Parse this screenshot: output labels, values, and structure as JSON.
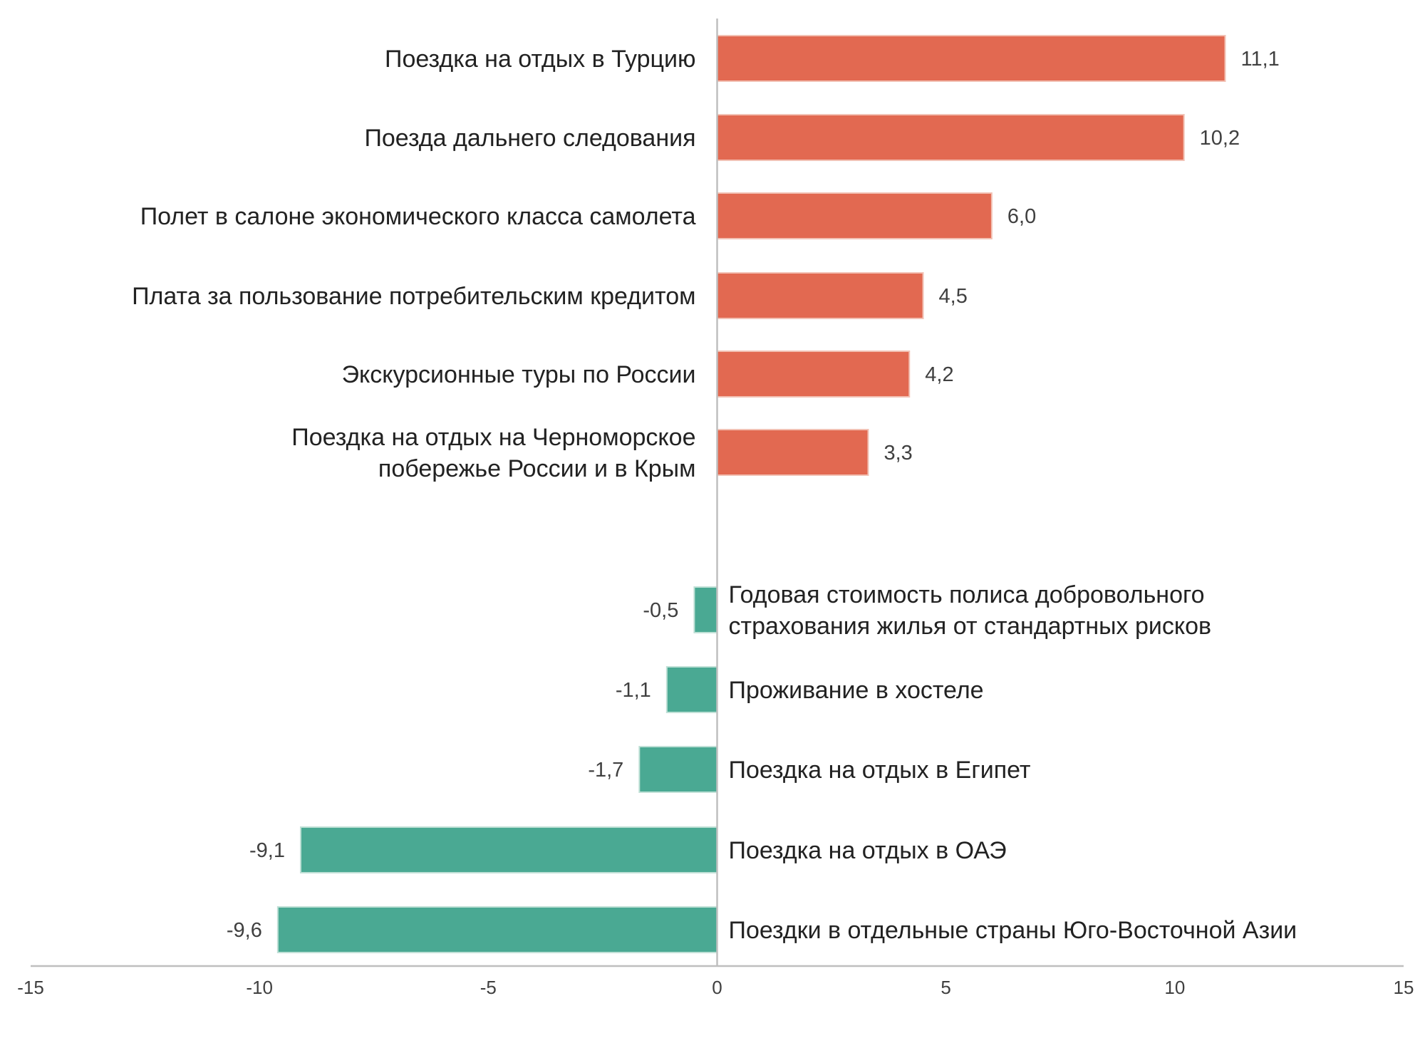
{
  "chart_data": {
    "type": "bar",
    "orientation": "horizontal",
    "title": "",
    "xlabel": "",
    "ylabel": "",
    "xlim": [
      -15,
      15
    ],
    "xticks": [
      -15,
      -10,
      -5,
      0,
      5,
      10,
      15
    ],
    "grid": false,
    "legend": "none",
    "colors": {
      "positive": "#e26951",
      "negative": "#4aa993",
      "axis": "#bfbfbf"
    },
    "bars": [
      {
        "label": [
          "Поездка на отдых в Турцию"
        ],
        "value": 11.1,
        "value_label": "11,1"
      },
      {
        "label": [
          "Поезда дальнего следования"
        ],
        "value": 10.2,
        "value_label": "10,2"
      },
      {
        "label": [
          "Полет в салоне экономического класса самолета"
        ],
        "value": 6.0,
        "value_label": "6,0"
      },
      {
        "label": [
          "Плата за пользование потребительским кредитом"
        ],
        "value": 4.5,
        "value_label": "4,5"
      },
      {
        "label": [
          "Экскурсионные туры по России"
        ],
        "value": 4.2,
        "value_label": "4,2"
      },
      {
        "label": [
          "Поездка на отдых на Черноморское",
          "побережье России и в Крым"
        ],
        "value": 3.3,
        "value_label": "3,3"
      },
      {
        "label": [
          "Годовая стоимость полиса добровольного",
          "страхования жилья от стандартных рисков"
        ],
        "value": -0.5,
        "value_label": "-0,5"
      },
      {
        "label": [
          "Проживание в хостеле"
        ],
        "value": -1.1,
        "value_label": "-1,1"
      },
      {
        "label": [
          "Поездка на отдых в Египет"
        ],
        "value": -1.7,
        "value_label": "-1,7"
      },
      {
        "label": [
          "Поездка на отдых в ОАЭ"
        ],
        "value": -9.1,
        "value_label": "-9,1"
      },
      {
        "label": [
          "Поездки в отдельные страны Юго-Восточной Азии"
        ],
        "value": -9.6,
        "value_label": "-9,6"
      }
    ]
  }
}
